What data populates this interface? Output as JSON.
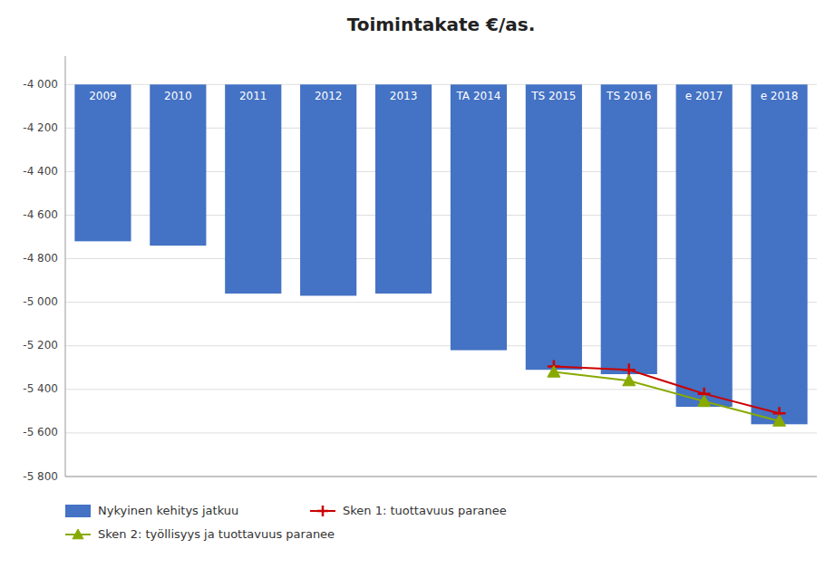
{
  "chart_data": {
    "type": "bar",
    "title": "Toimintakate €/as.",
    "categories": [
      "2009",
      "2010",
      "2011",
      "2012",
      "2013",
      "TA 2014",
      "TS 2015",
      "TS 2016",
      "e 2017",
      "e 2018"
    ],
    "baseline": -4000,
    "series": [
      {
        "name": "Nykyinen kehitys jatkuu",
        "type": "bar",
        "color": "#4472C4",
        "values": [
          -4720,
          -4740,
          -4960,
          -4970,
          -4960,
          -5220,
          -5310,
          -5330,
          -5480,
          -5560
        ]
      },
      {
        "name": "Sken 1: tuottavuus paranee",
        "type": "line",
        "color": "#CC0000",
        "marker": "plus",
        "values": [
          null,
          null,
          null,
          null,
          null,
          null,
          -5295,
          -5310,
          -5420,
          -5510
        ]
      },
      {
        "name": "Sken 2: työllisyys ja tuottavuus paranee",
        "type": "line",
        "color": "#88AA00",
        "marker": "triangle",
        "values": [
          null,
          null,
          null,
          null,
          null,
          null,
          -5320,
          -5360,
          -5455,
          -5545
        ]
      }
    ],
    "ylim": [
      -5800,
      -3870
    ],
    "yticks": [
      {
        "value": -4000,
        "label": "-4 000"
      },
      {
        "value": -4200,
        "label": "-4 200"
      },
      {
        "value": -4400,
        "label": "-4 400"
      },
      {
        "value": -4600,
        "label": "-4 600"
      },
      {
        "value": -4800,
        "label": "-4 800"
      },
      {
        "value": -5000,
        "label": "-5 000"
      },
      {
        "value": -5200,
        "label": "-5 200"
      },
      {
        "value": -5400,
        "label": "-5 400"
      },
      {
        "value": -5600,
        "label": "-5 600"
      },
      {
        "value": -5800,
        "label": "-5 800"
      }
    ],
    "grid": true,
    "legend": "bottom"
  }
}
